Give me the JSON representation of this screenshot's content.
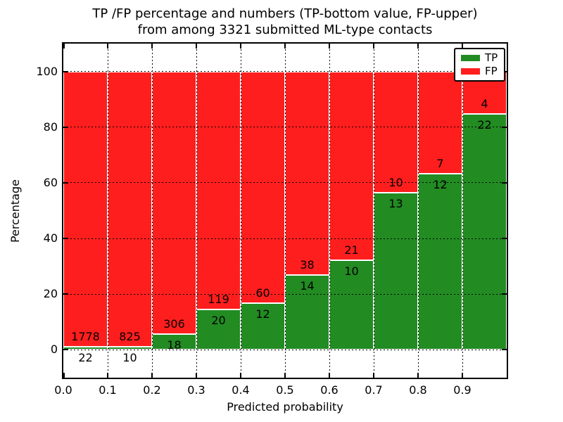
{
  "figure": {
    "title_line1": "TP /FP percentage and numbers (TP-bottom value, FP-upper)",
    "title_line2": "from among 3321 submitted ML-type contacts",
    "background_color": "#ffffff",
    "frame_color": "#000000"
  },
  "chart_data": {
    "type": "bar",
    "stacked": true,
    "title": "TP /FP percentage and numbers (TP-bottom value, FP-upper)\nfrom among 3321 submitted ML-type contacts",
    "xlabel": "Predicted probability",
    "ylabel": "Percentage",
    "total_contacts": 3321,
    "bin_start": [
      0.0,
      0.1,
      0.2,
      0.3,
      0.4,
      0.5,
      0.6,
      0.7,
      0.8,
      0.9
    ],
    "bin_width": 0.1,
    "series": [
      {
        "name": "TP",
        "color": "#228b22",
        "counts": [
          22,
          10,
          18,
          20,
          12,
          14,
          10,
          13,
          12,
          22
        ]
      },
      {
        "name": "FP",
        "color": "#ff1e1e",
        "counts": [
          1778,
          825,
          306,
          119,
          60,
          38,
          21,
          10,
          7,
          4
        ]
      }
    ],
    "tp_percent": [
      1.22,
      1.2,
      5.56,
      14.39,
      16.67,
      26.92,
      32.26,
      56.52,
      63.16,
      84.62
    ],
    "bar_total_percent": 100,
    "xticks": [
      "0.0",
      "0.1",
      "0.2",
      "0.3",
      "0.4",
      "0.5",
      "0.6",
      "0.7",
      "0.8",
      "0.9"
    ],
    "yticks": [
      "0",
      "20",
      "40",
      "60",
      "80",
      "100"
    ],
    "ytick_values": [
      0,
      20,
      40,
      60,
      80,
      100
    ],
    "xlim": [
      0,
      1
    ],
    "ylim": [
      -10,
      110
    ],
    "grid": true,
    "grid_style": "dotted",
    "grid_color": "#000000",
    "bar_edge_color": "#ffffff",
    "legend": {
      "position": "upper right",
      "entries": [
        "TP",
        "FP"
      ]
    }
  }
}
